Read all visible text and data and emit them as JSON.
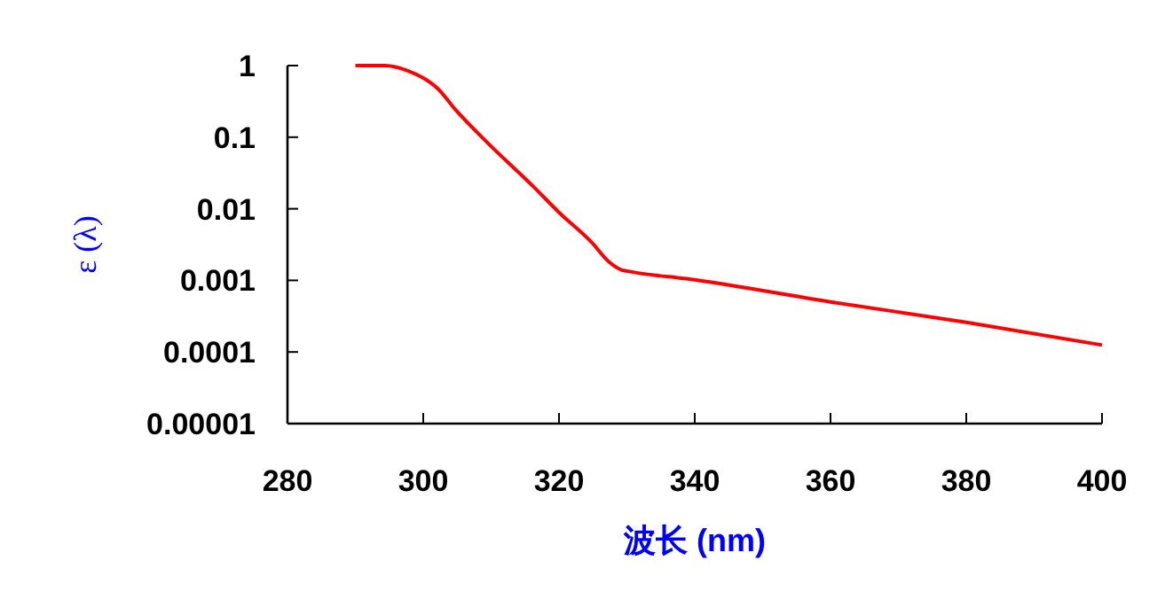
{
  "chart_data": {
    "type": "line",
    "xlabel": "波长 (nm)",
    "ylabel": "ε (λ)",
    "log": "y",
    "xlim": [
      280,
      400
    ],
    "xticks": [
      280,
      300,
      320,
      340,
      360,
      380,
      400
    ],
    "ylim": [
      1e-05,
      1
    ],
    "yticks": [
      {
        "value": 1e-05,
        "label": "0.00001"
      },
      0.0001,
      0.001,
      0.01,
      0.1,
      1
    ],
    "marker": "none",
    "line_style": "solid",
    "grid": false,
    "x": [
      290,
      294.3,
      297.8,
      300,
      302.1,
      304.7,
      309.5,
      316.1,
      320,
      324.8,
      327.4,
      329.2,
      330,
      340,
      360,
      380,
      400
    ],
    "series": [
      {
        "color": "#ff0000",
        "values": [
          1,
          1,
          0.84,
          0.67,
          0.48,
          0.245,
          0.083,
          0.021,
          0.0089,
          0.0034,
          0.0018,
          0.0014,
          0.00135,
          0.00102,
          0.0005,
          0.00026,
          0.000125
        ]
      }
    ]
  }
}
